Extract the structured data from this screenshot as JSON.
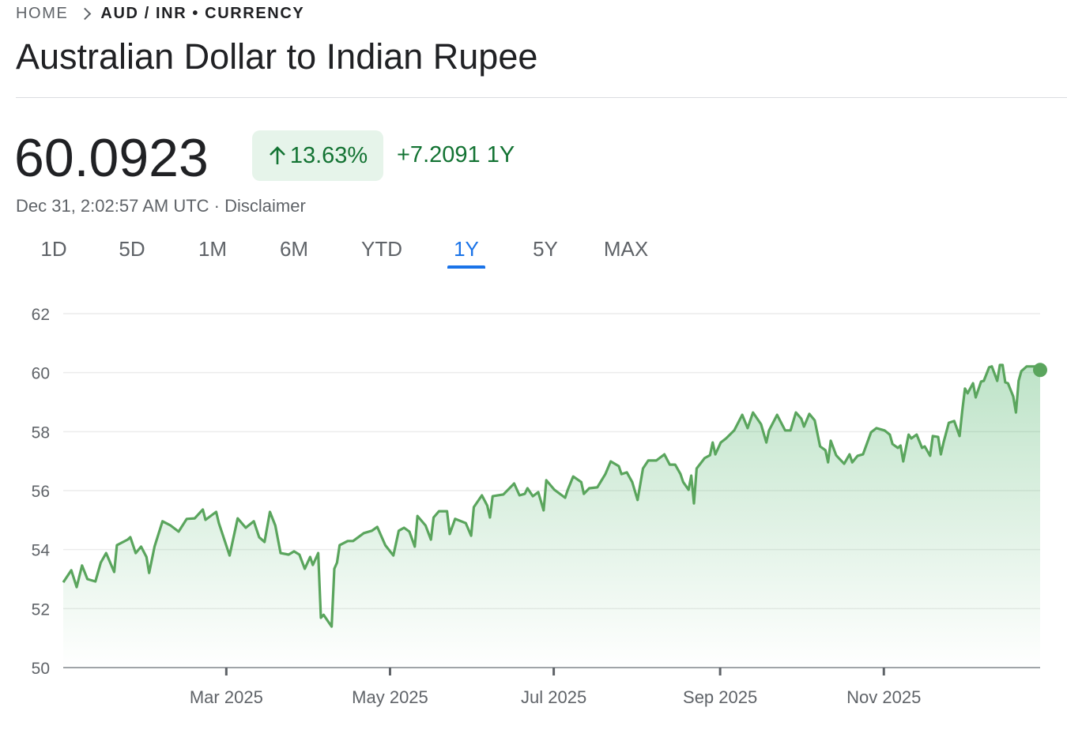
{
  "breadcrumb": {
    "home": "HOME",
    "current": "AUD / INR • CURRENCY"
  },
  "title": "Australian Dollar to Indian Rupee",
  "quote": {
    "price": "60.0923",
    "change_percent": "13.63%",
    "change_abs": "+7.2091 1Y",
    "timestamp": "Dec 31, 2:02:57 AM UTC",
    "separator": " · ",
    "disclaimer": "Disclaimer",
    "direction_icon": "arrow-up-icon"
  },
  "tabs": [
    {
      "label": "1D"
    },
    {
      "label": "5D"
    },
    {
      "label": "1M"
    },
    {
      "label": "6M"
    },
    {
      "label": "YTD"
    },
    {
      "label": "1Y",
      "active": true
    },
    {
      "label": "5Y"
    },
    {
      "label": "MAX"
    }
  ],
  "colors": {
    "positive": "#137333",
    "positive_bg": "#e6f4ea",
    "line": "#5aa55d",
    "accent": "#1a73e8"
  },
  "chart_data": {
    "type": "area",
    "title": "",
    "xlabel": "",
    "ylabel": "",
    "xlim": [
      "2025-01-01",
      "2025-12-31"
    ],
    "ylim": [
      50,
      62
    ],
    "yticks": [
      50,
      52,
      54,
      56,
      58,
      60,
      62
    ],
    "xticks": [
      {
        "date": "2025-03-01",
        "label": "Mar 2025"
      },
      {
        "date": "2025-05-01",
        "label": "May 2025"
      },
      {
        "date": "2025-07-01",
        "label": "Jul 2025"
      },
      {
        "date": "2025-09-01",
        "label": "Sep 2025"
      },
      {
        "date": "2025-11-01",
        "label": "Nov 2025"
      }
    ],
    "grid": true,
    "last_point_marker": true,
    "points": [
      [
        "2025-01-01",
        52.89
      ],
      [
        "2025-01-04",
        53.3
      ],
      [
        "2025-01-06",
        52.73
      ],
      [
        "2025-01-08",
        53.46
      ],
      [
        "2025-01-10",
        53.0
      ],
      [
        "2025-01-13",
        52.92
      ],
      [
        "2025-01-15",
        53.56
      ],
      [
        "2025-01-17",
        53.88
      ],
      [
        "2025-01-20",
        53.24
      ],
      [
        "2025-01-21",
        54.15
      ],
      [
        "2025-01-25",
        54.34
      ],
      [
        "2025-01-26",
        54.42
      ],
      [
        "2025-01-28",
        53.88
      ],
      [
        "2025-01-30",
        54.1
      ],
      [
        "2025-02-01",
        53.75
      ],
      [
        "2025-02-02",
        53.21
      ],
      [
        "2025-02-04",
        54.1
      ],
      [
        "2025-02-07",
        54.96
      ],
      [
        "2025-02-10",
        54.82
      ],
      [
        "2025-02-13",
        54.61
      ],
      [
        "2025-02-16",
        55.04
      ],
      [
        "2025-02-19",
        55.06
      ],
      [
        "2025-02-22",
        55.36
      ],
      [
        "2025-02-23",
        55.01
      ],
      [
        "2025-02-27",
        55.28
      ],
      [
        "2025-02-28",
        54.9
      ],
      [
        "2025-03-04",
        53.8
      ],
      [
        "2025-03-07",
        55.06
      ],
      [
        "2025-03-10",
        54.74
      ],
      [
        "2025-03-13",
        54.96
      ],
      [
        "2025-03-15",
        54.42
      ],
      [
        "2025-03-17",
        54.26
      ],
      [
        "2025-03-19",
        55.28
      ],
      [
        "2025-03-21",
        54.82
      ],
      [
        "2025-03-23",
        53.88
      ],
      [
        "2025-03-26",
        53.83
      ],
      [
        "2025-03-28",
        53.94
      ],
      [
        "2025-03-30",
        53.83
      ],
      [
        "2025-04-01",
        53.35
      ],
      [
        "2025-04-03",
        53.75
      ],
      [
        "2025-04-04",
        53.48
      ],
      [
        "2025-04-06",
        53.88
      ],
      [
        "2025-04-07",
        51.69
      ],
      [
        "2025-04-08",
        51.79
      ],
      [
        "2025-04-11",
        51.39
      ],
      [
        "2025-04-12",
        53.35
      ],
      [
        "2025-04-13",
        53.56
      ],
      [
        "2025-04-14",
        54.15
      ],
      [
        "2025-04-17",
        54.29
      ],
      [
        "2025-04-19",
        54.29
      ],
      [
        "2025-04-23",
        54.56
      ],
      [
        "2025-04-26",
        54.64
      ],
      [
        "2025-04-28",
        54.77
      ],
      [
        "2025-05-01",
        54.15
      ],
      [
        "2025-05-04",
        53.8
      ],
      [
        "2025-05-06",
        54.64
      ],
      [
        "2025-05-08",
        54.74
      ],
      [
        "2025-05-10",
        54.61
      ],
      [
        "2025-05-12",
        54.1
      ],
      [
        "2025-05-13",
        55.14
      ],
      [
        "2025-05-16",
        54.82
      ],
      [
        "2025-05-18",
        54.34
      ],
      [
        "2025-05-19",
        55.09
      ],
      [
        "2025-05-21",
        55.3
      ],
      [
        "2025-05-24",
        55.3
      ],
      [
        "2025-05-25",
        54.53
      ],
      [
        "2025-05-27",
        55.04
      ],
      [
        "2025-05-31",
        54.9
      ],
      [
        "2025-06-02",
        54.47
      ],
      [
        "2025-06-03",
        55.44
      ],
      [
        "2025-06-06",
        55.84
      ],
      [
        "2025-06-08",
        55.49
      ],
      [
        "2025-06-09",
        55.09
      ],
      [
        "2025-06-10",
        55.81
      ],
      [
        "2025-06-14",
        55.87
      ],
      [
        "2025-06-18",
        56.24
      ],
      [
        "2025-06-20",
        55.84
      ],
      [
        "2025-06-22",
        55.89
      ],
      [
        "2025-06-23",
        56.08
      ],
      [
        "2025-06-25",
        55.81
      ],
      [
        "2025-06-27",
        55.95
      ],
      [
        "2025-06-29",
        55.33
      ],
      [
        "2025-06-30",
        56.35
      ],
      [
        "2025-07-03",
        56.03
      ],
      [
        "2025-07-07",
        55.76
      ],
      [
        "2025-07-08",
        56.03
      ],
      [
        "2025-07-10",
        56.48
      ],
      [
        "2025-07-13",
        56.29
      ],
      [
        "2025-07-14",
        55.89
      ],
      [
        "2025-07-16",
        56.08
      ],
      [
        "2025-07-19",
        56.11
      ],
      [
        "2025-07-22",
        56.56
      ],
      [
        "2025-07-24",
        56.99
      ],
      [
        "2025-07-27",
        56.83
      ],
      [
        "2025-07-28",
        56.56
      ],
      [
        "2025-07-30",
        56.62
      ],
      [
        "2025-08-01",
        56.29
      ],
      [
        "2025-08-03",
        55.68
      ],
      [
        "2025-08-05",
        56.75
      ],
      [
        "2025-08-07",
        57.02
      ],
      [
        "2025-08-10",
        57.02
      ],
      [
        "2025-08-13",
        57.23
      ],
      [
        "2025-08-15",
        56.88
      ],
      [
        "2025-08-17",
        56.88
      ],
      [
        "2025-08-19",
        56.56
      ],
      [
        "2025-08-20",
        56.29
      ],
      [
        "2025-08-22",
        56.03
      ],
      [
        "2025-08-23",
        56.51
      ],
      [
        "2025-08-24",
        55.57
      ],
      [
        "2025-08-25",
        56.75
      ],
      [
        "2025-08-28",
        57.1
      ],
      [
        "2025-08-30",
        57.2
      ],
      [
        "2025-08-31",
        57.63
      ],
      [
        "2025-09-01",
        57.23
      ],
      [
        "2025-09-03",
        57.63
      ],
      [
        "2025-09-05",
        57.77
      ],
      [
        "2025-09-08",
        58.04
      ],
      [
        "2025-09-11",
        58.57
      ],
      [
        "2025-09-13",
        58.12
      ],
      [
        "2025-09-15",
        58.65
      ],
      [
        "2025-09-18",
        58.25
      ],
      [
        "2025-09-20",
        57.63
      ],
      [
        "2025-09-21",
        58.04
      ],
      [
        "2025-09-24",
        58.57
      ],
      [
        "2025-09-27",
        58.04
      ],
      [
        "2025-09-29",
        58.04
      ],
      [
        "2025-10-01",
        58.65
      ],
      [
        "2025-10-03",
        58.44
      ],
      [
        "2025-10-04",
        58.17
      ],
      [
        "2025-10-06",
        58.6
      ],
      [
        "2025-10-08",
        58.38
      ],
      [
        "2025-10-10",
        57.5
      ],
      [
        "2025-10-12",
        57.37
      ],
      [
        "2025-10-13",
        56.96
      ],
      [
        "2025-10-14",
        57.69
      ],
      [
        "2025-10-16",
        57.2
      ],
      [
        "2025-10-17",
        57.1
      ],
      [
        "2025-10-19",
        56.91
      ],
      [
        "2025-10-21",
        57.23
      ],
      [
        "2025-10-22",
        56.96
      ],
      [
        "2025-10-24",
        57.18
      ],
      [
        "2025-10-26",
        57.23
      ],
      [
        "2025-10-29",
        57.98
      ],
      [
        "2025-10-31",
        58.12
      ],
      [
        "2025-11-03",
        58.04
      ],
      [
        "2025-11-05",
        57.9
      ],
      [
        "2025-11-06",
        57.58
      ],
      [
        "2025-11-08",
        57.45
      ],
      [
        "2025-11-09",
        57.53
      ],
      [
        "2025-11-10",
        56.99
      ],
      [
        "2025-11-12",
        57.9
      ],
      [
        "2025-11-13",
        57.77
      ],
      [
        "2025-11-15",
        57.9
      ],
      [
        "2025-11-17",
        57.45
      ],
      [
        "2025-11-18",
        57.5
      ],
      [
        "2025-11-20",
        57.18
      ],
      [
        "2025-11-21",
        57.85
      ],
      [
        "2025-11-23",
        57.82
      ],
      [
        "2025-11-24",
        57.23
      ],
      [
        "2025-11-25",
        57.63
      ],
      [
        "2025-11-27",
        58.3
      ],
      [
        "2025-11-29",
        58.36
      ],
      [
        "2025-12-01",
        57.85
      ],
      [
        "2025-12-02",
        58.71
      ],
      [
        "2025-12-03",
        59.46
      ],
      [
        "2025-12-04",
        59.3
      ],
      [
        "2025-12-06",
        59.64
      ],
      [
        "2025-12-07",
        59.16
      ],
      [
        "2025-12-09",
        59.7
      ],
      [
        "2025-12-10",
        59.72
      ],
      [
        "2025-12-12",
        60.18
      ],
      [
        "2025-12-13",
        60.21
      ],
      [
        "2025-12-15",
        59.72
      ],
      [
        "2025-12-16",
        60.26
      ],
      [
        "2025-12-17",
        60.26
      ],
      [
        "2025-12-18",
        59.67
      ],
      [
        "2025-12-19",
        59.64
      ],
      [
        "2025-12-21",
        59.19
      ],
      [
        "2025-12-22",
        58.65
      ],
      [
        "2025-12-23",
        59.72
      ],
      [
        "2025-12-24",
        60.05
      ],
      [
        "2025-12-26",
        60.21
      ],
      [
        "2025-12-29",
        60.21
      ],
      [
        "2025-12-31",
        60.09
      ]
    ]
  }
}
